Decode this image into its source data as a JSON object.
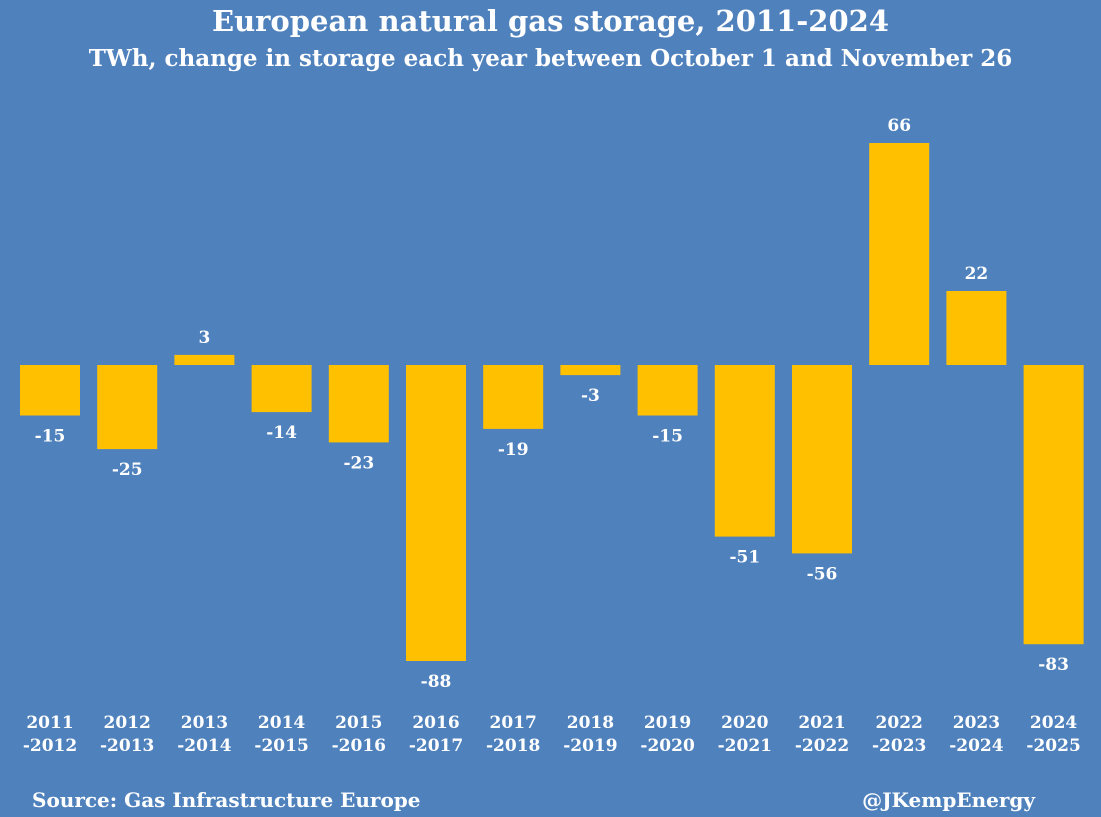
{
  "colors": {
    "background": "#4f81bd",
    "bar": "#ffc000",
    "text": "#ffffff"
  },
  "header": {
    "title": "European natural gas storage, 2011-2024",
    "subtitle": "TWh, change in storage each year between October 1 and November 26"
  },
  "footer": {
    "source": "Source: Gas Infrastructure Europe",
    "handle": "@JKempEnergy"
  },
  "chart_data": {
    "type": "bar",
    "title": "European natural gas storage, 2011-2024",
    "subtitle": "TWh, change in storage each year between October 1 and November 26",
    "xlabel": "",
    "ylabel": "",
    "unit": "TWh",
    "grid": false,
    "legend": false,
    "categories": [
      [
        "2011",
        "-2012"
      ],
      [
        "2012",
        "-2013"
      ],
      [
        "2013",
        "-2014"
      ],
      [
        "2014",
        "-2015"
      ],
      [
        "2015",
        "-2016"
      ],
      [
        "2016",
        "-2017"
      ],
      [
        "2017",
        "-2018"
      ],
      [
        "2018",
        "-2019"
      ],
      [
        "2019",
        "-2020"
      ],
      [
        "2020",
        "-2021"
      ],
      [
        "2021",
        "-2022"
      ],
      [
        "2022",
        "-2023"
      ],
      [
        "2023",
        "-2024"
      ],
      [
        "2024",
        "-2025"
      ]
    ],
    "values": [
      -15,
      -25,
      3,
      -14,
      -23,
      -88,
      -19,
      -3,
      -15,
      -51,
      -56,
      66,
      22,
      -83
    ],
    "data_labels": [
      "-15",
      "-25",
      "3",
      "-14",
      "-23",
      "-88",
      "-19",
      "-3",
      "-15",
      "-51",
      "-56",
      "66",
      "22",
      "-83"
    ],
    "ylim": [
      -88,
      66
    ]
  }
}
